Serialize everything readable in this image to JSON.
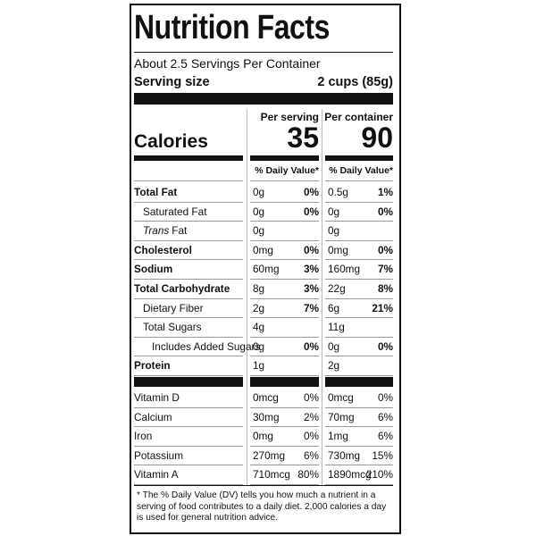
{
  "title": "Nutrition Facts",
  "servings": "About 2.5 Servings Per Container",
  "serving_size": {
    "label": "Serving size",
    "value": "2 cups (85g)"
  },
  "columns": [
    "Per serving",
    "Per container"
  ],
  "calories": {
    "label": "Calories",
    "values": [
      "35",
      "90"
    ]
  },
  "dv_header": "% Daily Value*",
  "nutrients": [
    {
      "name": [
        {
          "text": "Total Fat"
        }
      ],
      "bold": true,
      "indent": 0,
      "serving": [
        "0g",
        "0%"
      ],
      "container": [
        "0.5g",
        "1%"
      ]
    },
    {
      "name": [
        {
          "text": "Saturated Fat"
        }
      ],
      "bold": false,
      "indent": 1,
      "serving": [
        "0g",
        "0%"
      ],
      "container": [
        "0g",
        "0%"
      ]
    },
    {
      "name": [
        {
          "text": "Trans",
          "italic": true
        },
        {
          "text": "Fat"
        }
      ],
      "bold": false,
      "indent": 1,
      "serving": [
        "0g",
        null
      ],
      "container": [
        "0g",
        null
      ]
    },
    {
      "name": [
        {
          "text": "Cholesterol"
        }
      ],
      "bold": true,
      "indent": 0,
      "serving": [
        "0mg",
        "0%"
      ],
      "container": [
        "0mg",
        "0%"
      ]
    },
    {
      "name": [
        {
          "text": "Sodium"
        }
      ],
      "bold": true,
      "indent": 0,
      "serving": [
        "60mg",
        "3%"
      ],
      "container": [
        "160mg",
        "7%"
      ]
    },
    {
      "name": [
        {
          "text": "Total Carbohydrate"
        }
      ],
      "bold": true,
      "indent": 0,
      "serving": [
        "8g",
        "3%"
      ],
      "container": [
        "22g",
        "8%"
      ]
    },
    {
      "name": [
        {
          "text": "Dietary Fiber"
        }
      ],
      "bold": false,
      "indent": 1,
      "serving": [
        "2g",
        "7%"
      ],
      "container": [
        "6g",
        "21%"
      ]
    },
    {
      "name": [
        {
          "text": "Total Sugars"
        }
      ],
      "bold": false,
      "indent": 1,
      "serving": [
        "4g",
        null
      ],
      "container": [
        "11g",
        null
      ]
    },
    {
      "name": [
        {
          "text": "Includes Added Sugars"
        }
      ],
      "bold": false,
      "indent": 2,
      "serving": [
        "0g",
        "0%"
      ],
      "container": [
        "0g",
        "0%"
      ]
    },
    {
      "name": [
        {
          "text": "Protein"
        }
      ],
      "bold": true,
      "indent": 0,
      "serving": [
        "1g",
        null
      ],
      "container": [
        "2g",
        null
      ]
    }
  ],
  "vitamins": [
    {
      "name": "Vitamin D",
      "serving": [
        "0mcg",
        "0%"
      ],
      "container": [
        "0mcg",
        "0%"
      ]
    },
    {
      "name": "Calcium",
      "serving": [
        "30mg",
        "2%"
      ],
      "container": [
        "70mg",
        "6%"
      ]
    },
    {
      "name": "Iron",
      "serving": [
        "0mg",
        "0%"
      ],
      "container": [
        "1mg",
        "6%"
      ]
    },
    {
      "name": "Potassium",
      "serving": [
        "270mg",
        "6%"
      ],
      "container": [
        "730mg",
        "15%"
      ]
    },
    {
      "name": "Vitamin A",
      "serving": [
        "710mcg",
        "80%"
      ],
      "container": [
        "1890mcg",
        "210%"
      ]
    }
  ],
  "footnote": "* The % Daily Value (DV) tells you how much a nutrient in a serving of food contributes to a daily diet. 2,000 calories a day is used for general nutrition advice."
}
